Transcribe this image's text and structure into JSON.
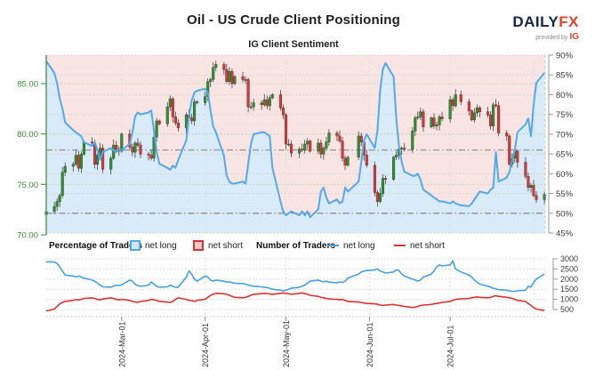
{
  "header": {
    "title": "Oil - US Crude Client Positioning",
    "subtitle": "IG Client Sentiment",
    "logo": {
      "brand_main": "DAILY",
      "brand_accent": "FX",
      "tagline": "provided by",
      "tagline_brand": "IG"
    }
  },
  "legend": {
    "percentage_title": "Percentage of Traders",
    "percentage_net_long": "net long",
    "percentage_net_short": "net short",
    "number_title": "Number of Traders",
    "number_net_long": "net long",
    "number_net_short": "net short"
  },
  "colors": {
    "bearish_background": "#f9e4e4",
    "bullish_background": "#d9eaf8",
    "sentiment_line": "#54a9e8",
    "candle_up": "#3a8a3a",
    "candle_up_stroke": "#1f5c1f",
    "candle_down": "#c64040",
    "candle_down_stroke": "#8f2626",
    "wick": "#444444",
    "price_axis": "#3d8b3d",
    "price_grid": "#b5d6a7",
    "pct_grid": "#cfcfcf",
    "month_grid": "#d9d9d9",
    "reference_line": "#8a8a8a",
    "axis_text": "#3a3a3a",
    "traders_long_line": "#45a1e6",
    "traders_short_line": "#e03131",
    "logo_navy": "#14264c",
    "logo_red": "#e8412e"
  },
  "chart_data": [
    {
      "type": "candlestick+line",
      "title": "IG Client Sentiment",
      "price_axis": {
        "range": [
          70,
          87.6
        ],
        "ticks": [
          {
            "label": "85.00",
            "value": 85
          },
          {
            "label": "80.00",
            "value": 80
          },
          {
            "label": "75.00",
            "value": 75
          },
          {
            "label": "70.00",
            "value": 70
          }
        ]
      },
      "pct_axis": {
        "range": [
          45,
          90
        ],
        "ticks": [
          {
            "label": "90%",
            "value": 90
          },
          {
            "label": "85%",
            "value": 85
          },
          {
            "label": "80%",
            "value": 80
          },
          {
            "label": "75%",
            "value": 75
          },
          {
            "label": "70%",
            "value": 70
          },
          {
            "label": "65%",
            "value": 65
          },
          {
            "label": "60%",
            "value": 60
          },
          {
            "label": "55%",
            "value": 55
          },
          {
            "label": "50%",
            "value": 50
          },
          {
            "label": "45%",
            "value": 45
          }
        ]
      },
      "x_axis": {
        "start_date": "2024-02-02",
        "month_gridline_days": [
          29,
          60,
          90,
          121,
          151,
          182
        ],
        "month_labels": [
          {
            "label": "2024-Mar-01",
            "day": 29
          },
          {
            "label": "2024-Apr-01",
            "day": 60
          },
          {
            "label": "2024-May-01",
            "day": 90
          },
          {
            "label": "2024-Jun-01",
            "day": 121
          },
          {
            "label": "2024-Jul-01",
            "day": 151
          }
        ]
      },
      "reference_lines_pct": [
        66,
        50
      ],
      "candles": {
        "name": "Oil - US Crude daily price",
        "first_open": 72.0,
        "day_offsets": [
          1,
          4,
          5,
          6,
          7,
          8,
          11,
          12,
          13,
          14,
          15,
          18,
          19,
          20,
          21,
          22,
          25,
          26,
          27,
          28,
          29,
          32,
          33,
          34,
          35,
          36,
          39,
          40,
          41,
          42,
          43,
          46,
          47,
          48,
          49,
          50,
          53,
          54,
          55,
          56,
          57,
          60,
          61,
          62,
          63,
          64,
          67,
          68,
          69,
          70,
          71,
          74,
          75,
          76,
          77,
          78,
          81,
          82,
          83,
          84,
          85,
          88,
          89,
          90,
          91,
          92,
          95,
          96,
          97,
          98,
          99,
          102,
          103,
          104,
          105,
          106,
          109,
          110,
          111,
          112,
          113,
          117,
          118,
          119,
          120,
          123,
          124,
          125,
          126,
          127,
          130,
          131,
          132,
          133,
          134,
          137,
          138,
          139,
          140,
          141,
          144,
          145,
          146,
          147,
          148,
          151,
          152,
          153,
          155,
          158,
          159,
          160,
          161,
          162,
          165,
          166,
          167,
          168,
          169,
          172,
          173,
          174,
          175,
          176,
          179,
          180,
          181,
          182,
          183,
          186
        ],
        "closes": [
          72.3,
          72.8,
          73.3,
          73.9,
          76.2,
          76.8,
          77.0,
          77.9,
          76.6,
          78.0,
          79.2,
          79.1,
          77.0,
          77.9,
          78.6,
          76.5,
          77.6,
          78.9,
          78.5,
          78.3,
          80.0,
          78.7,
          78.2,
          79.1,
          78.9,
          78.0,
          77.9,
          77.6,
          79.7,
          81.3,
          81.0,
          82.7,
          83.5,
          81.7,
          81.1,
          80.6,
          81.9,
          81.6,
          81.3,
          83.2,
          83.1,
          83.7,
          85.2,
          85.4,
          86.6,
          86.9,
          86.4,
          85.2,
          86.2,
          85.0,
          85.7,
          85.4,
          85.4,
          82.7,
          82.7,
          83.1,
          82.9,
          83.4,
          82.8,
          83.6,
          83.9,
          82.6,
          81.9,
          79.0,
          79.0,
          78.1,
          78.5,
          78.4,
          79.0,
          79.3,
          78.3,
          79.1,
          78.0,
          78.6,
          79.2,
          80.1,
          79.8,
          79.3,
          77.6,
          76.9,
          77.7,
          79.8,
          79.2,
          77.9,
          76.9,
          74.2,
          73.3,
          74.1,
          75.6,
          75.5,
          77.7,
          77.9,
          78.5,
          78.6,
          78.5,
          80.3,
          81.6,
          81.7,
          82.2,
          80.7,
          81.6,
          80.8,
          80.9,
          81.7,
          81.5,
          83.4,
          82.8,
          83.9,
          83.2,
          82.3,
          81.4,
          82.1,
          82.6,
          82.2,
          81.9,
          80.8,
          82.9,
          82.8,
          80.1,
          79.8,
          77.0,
          77.6,
          78.3,
          77.2,
          75.8,
          74.7,
          74.9,
          73.9,
          73.5,
          74.0
        ]
      },
      "sentiment": {
        "name": "net long percentage",
        "values": [
          88.5,
          85.5,
          83,
          79,
          76.5,
          73,
          71,
          70.5,
          70,
          69.5,
          68,
          67,
          68,
          66,
          63.5,
          65.5,
          66.5,
          66,
          65.5,
          66,
          66,
          67.5,
          70.5,
          74.5,
          75.5,
          75,
          75.5,
          76,
          71,
          65.5,
          62.5,
          61.5,
          61,
          62,
          61.5,
          63.5,
          68.5,
          74.5,
          78.5,
          80.5,
          81,
          81.5,
          80.5,
          76,
          72,
          70.5,
          64.5,
          59.5,
          58,
          57.5,
          57.5,
          58,
          57.5,
          62.5,
          67.5,
          70,
          70.5,
          70.5,
          70,
          69.5,
          61.5,
          53,
          50.5,
          49.5,
          50,
          50.5,
          49.5,
          50.5,
          49.5,
          50.5,
          49,
          51,
          55.5,
          56.5,
          54,
          52.5,
          53.5,
          52.5,
          53,
          56.5,
          55.5,
          58,
          63,
          68.5,
          70,
          66.5,
          71,
          81,
          86.5,
          88,
          84.5,
          74,
          67,
          63,
          60.5,
          59.5,
          59.5,
          60,
          58.5,
          56,
          54.5,
          54,
          53.5,
          53,
          53,
          52.5,
          53,
          52.5,
          52,
          51.8,
          52.5,
          53.5,
          54.5,
          55.5,
          55,
          56,
          56.5,
          65.5,
          58,
          59,
          60.5,
          63.5,
          66,
          70.5,
          72.5,
          74,
          69.5,
          77.5,
          83,
          85.5
        ]
      }
    },
    {
      "type": "line",
      "y_axis": {
        "range": [
          150,
          3000
        ],
        "ticks": [
          {
            "label": "3000",
            "value": 3000
          },
          {
            "label": "2500",
            "value": 2500
          },
          {
            "label": "2000",
            "value": 2000
          },
          {
            "label": "1500",
            "value": 1500
          },
          {
            "label": "1000",
            "value": 1000
          },
          {
            "label": "500",
            "value": 500
          }
        ]
      },
      "series": [
        {
          "name": "net long",
          "values": [
            2850,
            2840,
            2780,
            2600,
            2400,
            2200,
            2150,
            2100,
            2150,
            2100,
            2050,
            1950,
            1900,
            1800,
            1700,
            1620,
            1600,
            1650,
            1700,
            1680,
            1720,
            1950,
            1900,
            1750,
            1680,
            1640,
            1700,
            1860,
            1750,
            1640,
            1600,
            1620,
            1700,
            1640,
            1600,
            1600,
            2100,
            2400,
            2250,
            2000,
            1900,
            2150,
            2100,
            1950,
            1900,
            1950,
            1900,
            1850,
            1870,
            1820,
            1800,
            1780,
            1750,
            1700,
            1680,
            1650,
            1620,
            1600,
            1580,
            1550,
            1500,
            1450,
            1420,
            1450,
            1500,
            1550,
            1600,
            1650,
            1700,
            1800,
            1900,
            1950,
            1900,
            1870,
            1900,
            1850,
            1820,
            1860,
            1830,
            1900,
            2050,
            2250,
            2350,
            2400,
            2420,
            2450,
            2500,
            2400,
            2350,
            2300,
            2350,
            2450,
            2420,
            2250,
            2150,
            2000,
            1950,
            1900,
            1950,
            2100,
            2250,
            2400,
            2600,
            2700,
            2650,
            2700,
            2900,
            2500,
            2350,
            2200,
            2100,
            1950,
            1850,
            1750,
            1650,
            1600,
            1550,
            1520,
            1480,
            1450,
            1420,
            1400,
            1400,
            1420,
            1450,
            1650,
            1600,
            1850,
            2000,
            2250
          ]
        },
        {
          "name": "net short",
          "values": [
            430,
            520,
            650,
            780,
            850,
            900,
            950,
            1000,
            970,
            1000,
            1050,
            1075,
            1050,
            1000,
            980,
            1020,
            1075,
            1050,
            1000,
            980,
            1000,
            950,
            900,
            870,
            850,
            900,
            950,
            1000,
            980,
            950,
            900,
            870,
            850,
            900,
            1000,
            1075,
            1000,
            950,
            940,
            900,
            950,
            1000,
            1100,
            1200,
            1250,
            1300,
            1280,
            1250,
            1200,
            1150,
            1100,
            1080,
            1100,
            1150,
            1200,
            1250,
            1280,
            1300,
            1290,
            1270,
            1250,
            1300,
            1320,
            1300,
            1280,
            1250,
            1300,
            1320,
            1280,
            1250,
            1200,
            1150,
            1100,
            1080,
            1050,
            1020,
            1000,
            980,
            1000,
            950,
            900,
            870,
            850,
            820,
            800,
            780,
            760,
            720,
            700,
            720,
            750,
            720,
            700,
            680,
            650,
            600,
            620,
            650,
            700,
            720,
            750,
            780,
            800,
            820,
            850,
            900,
            950,
            1000,
            1020,
            1050,
            1080,
            1100,
            1120,
            1100,
            1080,
            1100,
            1150,
            1180,
            1150,
            1100,
            1080,
            1050,
            1000,
            950,
            900,
            800,
            700,
            600,
            520,
            450
          ]
        }
      ]
    }
  ]
}
